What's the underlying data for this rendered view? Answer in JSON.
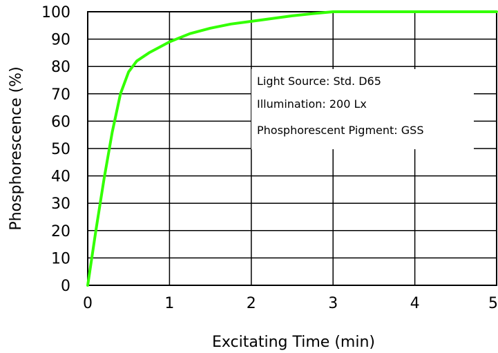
{
  "chart_data": {
    "type": "line",
    "xlabel": "Excitating Time (min)",
    "ylabel": "Phosphorescence (%)",
    "xlim": [
      0,
      5
    ],
    "ylim": [
      0,
      100
    ],
    "x_ticks": [
      0,
      1,
      2,
      3,
      4,
      5
    ],
    "y_ticks": [
      0,
      10,
      20,
      30,
      40,
      50,
      60,
      70,
      80,
      90,
      100
    ],
    "grid": true,
    "line_color": "#33ff00",
    "series": [
      {
        "x": [
          0,
          0.1,
          0.2,
          0.3,
          0.4,
          0.5,
          0.6,
          0.75,
          1.0,
          1.25,
          1.5,
          1.75,
          2.0,
          2.25,
          2.5,
          2.75,
          3.0,
          3.5,
          4.0,
          4.5,
          5.0
        ],
        "y": [
          0,
          20,
          39,
          56,
          70,
          78,
          82,
          85,
          89,
          92,
          94,
          95.5,
          96.5,
          97.5,
          98.5,
          99.3,
          100,
          100,
          100,
          100,
          100
        ]
      }
    ],
    "annotations": [
      "Light Source: Std. D65",
      "Illumination:  200 Lx",
      "Phosphorescent Pigment: GSS"
    ]
  }
}
